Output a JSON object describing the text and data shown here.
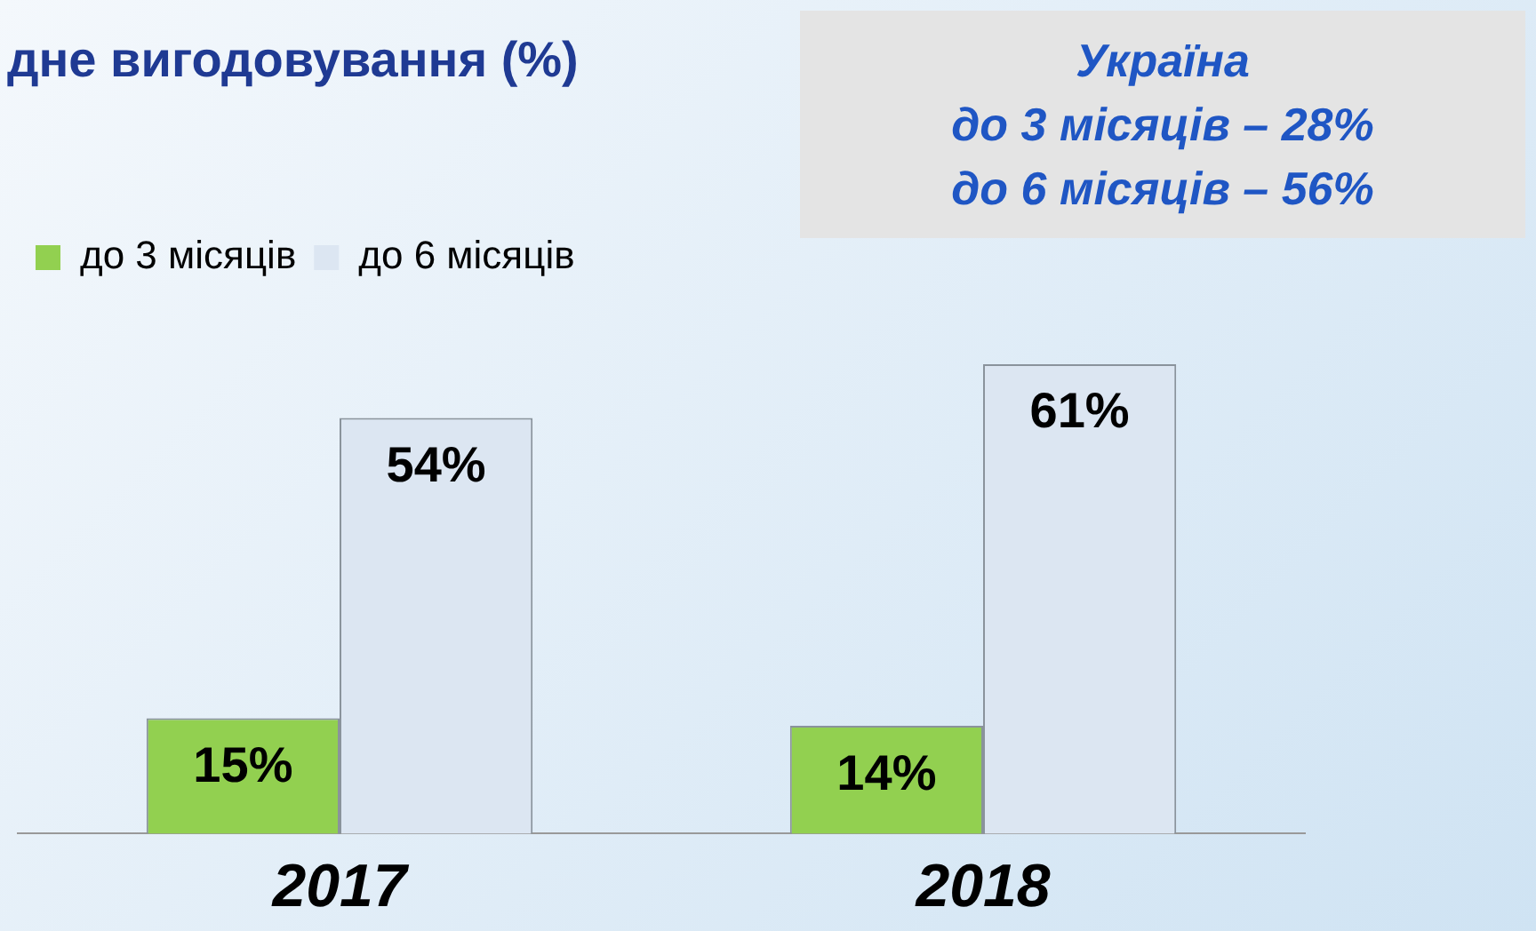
{
  "chart_data": {
    "type": "bar",
    "title": "дне вигодовування (%)",
    "categories": [
      "2017",
      "2018"
    ],
    "series": [
      {
        "name": "до 3 місяців",
        "color": "#92d050",
        "values": [
          15,
          14
        ],
        "value_labels": [
          "15%",
          "14%"
        ]
      },
      {
        "name": "до 6 місяців",
        "color": "#dce6f2",
        "values": [
          54,
          61
        ],
        "value_labels": [
          "54%",
          "61%"
        ]
      }
    ],
    "annotations": [
      "Україна",
      "до 3 місяців – 28%",
      "до 6 місяців – 56%"
    ],
    "legend": "top left",
    "grid": false
  }
}
